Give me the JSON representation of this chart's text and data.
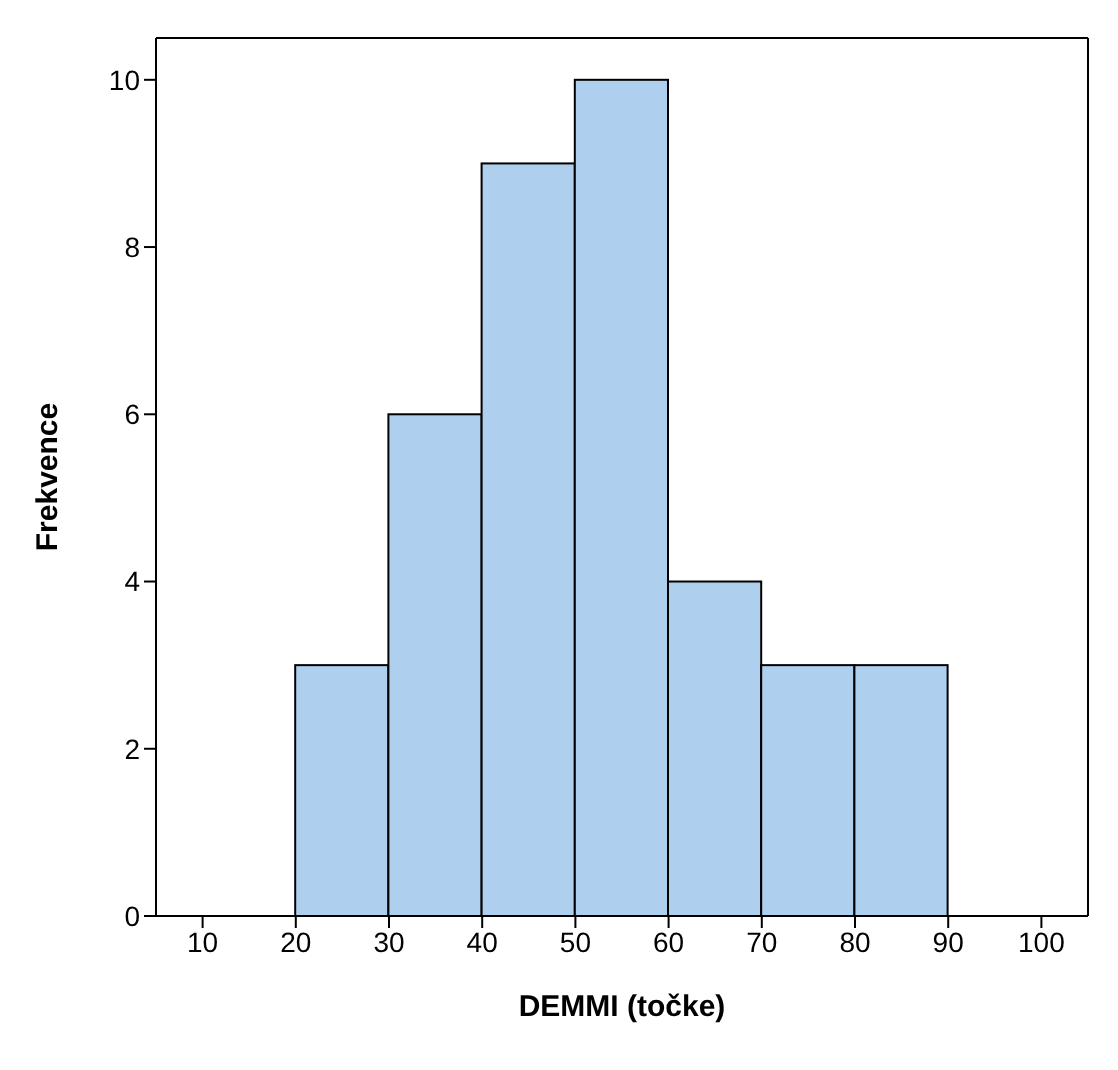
{
  "chart_data": {
    "type": "histogram",
    "xlabel": "DEMMI (točke)",
    "ylabel": "Frekvence",
    "bins": [
      20,
      30,
      40,
      50,
      60,
      70,
      80,
      90
    ],
    "values": [
      3,
      6,
      9,
      10,
      4,
      3,
      3
    ],
    "color": "#aed0ee",
    "xlim": [
      5,
      105
    ],
    "xticks": [
      10,
      20,
      30,
      40,
      50,
      60,
      70,
      80,
      90,
      100
    ],
    "ylim": [
      0,
      10.5
    ],
    "yticks": [
      0,
      2,
      4,
      6,
      8,
      10
    ]
  }
}
